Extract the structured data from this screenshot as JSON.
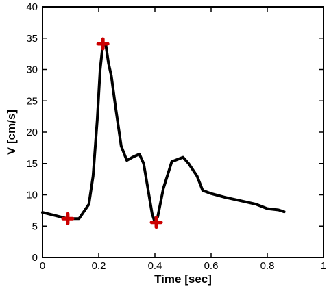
{
  "chart_data": {
    "type": "line",
    "xlabel": "Time [sec]",
    "ylabel": "V [cm/s]",
    "xlim": [
      0,
      1
    ],
    "ylim": [
      0,
      40
    ],
    "xticks": [
      0,
      0.2,
      0.4,
      0.6,
      0.8,
      1
    ],
    "xtick_labels": [
      "0",
      "0.2",
      "0.4",
      "0.6",
      "0.8",
      "1"
    ],
    "yticks": [
      0,
      5,
      10,
      15,
      20,
      25,
      30,
      35,
      40
    ],
    "ytick_labels": [
      "0",
      "5",
      "10",
      "15",
      "20",
      "25",
      "30",
      "35",
      "40"
    ],
    "grid": false,
    "series": [
      {
        "color": "#000000",
        "x": [
          0,
          0.09,
          0.13,
          0.165,
          0.18,
          0.195,
          0.205,
          0.215,
          0.225,
          0.235,
          0.245,
          0.26,
          0.28,
          0.3,
          0.32,
          0.345,
          0.36,
          0.375,
          0.39,
          0.4,
          0.41,
          0.43,
          0.46,
          0.5,
          0.52,
          0.55,
          0.57,
          0.6,
          0.65,
          0.7,
          0.76,
          0.8,
          0.84,
          0.86
        ],
        "y": [
          7.2,
          6.2,
          6.2,
          8.5,
          13,
          22,
          30,
          34.1,
          34,
          31,
          29,
          24,
          17.8,
          15.5,
          16,
          16.5,
          15,
          11,
          7,
          5.6,
          6.5,
          11,
          15.3,
          16,
          15,
          13,
          10.7,
          10.2,
          9.6,
          9.1,
          8.5,
          7.8,
          7.6,
          7.3
        ]
      }
    ],
    "markers": {
      "color": "#cc0000",
      "points": [
        {
          "x": 0.09,
          "y": 6.2
        },
        {
          "x": 0.215,
          "y": 34.1
        },
        {
          "x": 0.405,
          "y": 5.6
        }
      ]
    }
  }
}
